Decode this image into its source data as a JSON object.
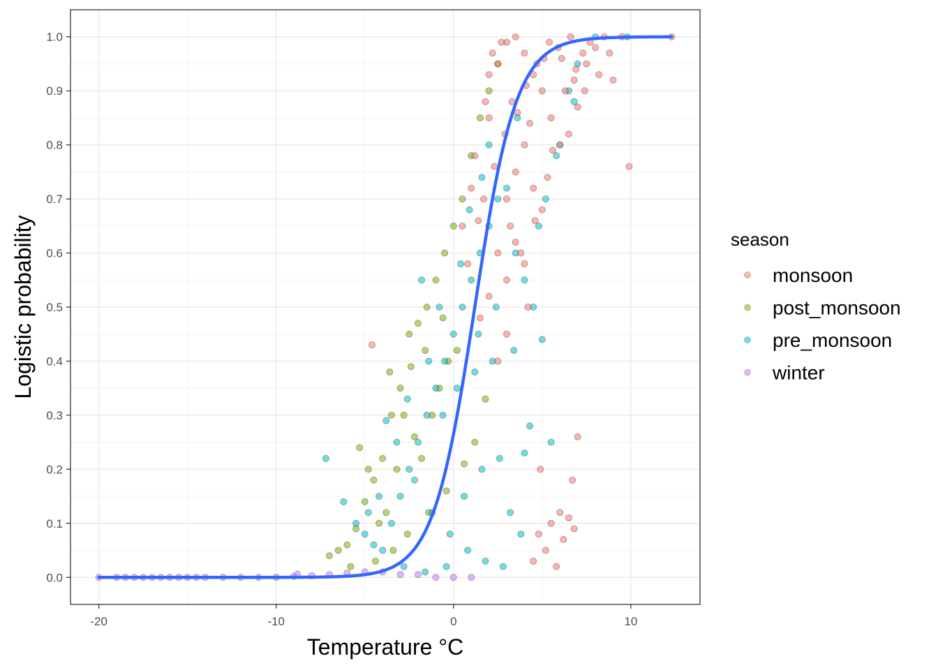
{
  "chart_data": {
    "type": "scatter",
    "title": "",
    "xlabel": "Temperature °C",
    "ylabel": "Logistic probability",
    "xlim": [
      -21.6,
      13.9
    ],
    "ylim": [
      -0.05,
      1.05
    ],
    "x_ticks": [
      -20,
      -10,
      0,
      10
    ],
    "x_tick_labels": [
      "-20",
      "-10",
      "0",
      "10"
    ],
    "y_ticks": [
      0.0,
      0.1,
      0.2,
      0.3,
      0.4,
      0.5,
      0.6,
      0.7,
      0.8,
      0.9,
      1.0
    ],
    "y_tick_labels": [
      "0.0",
      "0.1",
      "0.2",
      "0.3",
      "0.4",
      "0.5",
      "0.6",
      "0.7",
      "0.8",
      "0.9",
      "1.0"
    ],
    "grid": true,
    "legend": {
      "title": "season",
      "placement": "right",
      "entries": [
        {
          "label": "monsoon",
          "color": "#F8766D"
        },
        {
          "label": "post_monsoon",
          "color": "#7CAE00"
        },
        {
          "label": "pre_monsoon",
          "color": "#00BFC4"
        },
        {
          "label": "winter",
          "color": "#C77CFF"
        }
      ]
    },
    "series": [
      {
        "name": "monsoon",
        "color": "#F8766D",
        "points": [
          [
            -4.6,
            0.43
          ],
          [
            0.5,
            0.65
          ],
          [
            1.2,
            0.78
          ],
          [
            2.0,
            0.85
          ],
          [
            2.5,
            0.95
          ],
          [
            3.0,
            0.99
          ],
          [
            3.5,
            1.0
          ],
          [
            4.0,
            0.97
          ],
          [
            4.5,
            0.93
          ],
          [
            5.0,
            0.9
          ],
          [
            5.5,
            0.85
          ],
          [
            6.0,
            0.8
          ],
          [
            6.5,
            0.82
          ],
          [
            7.0,
            0.87
          ],
          [
            7.5,
            0.95
          ],
          [
            8.0,
            0.98
          ],
          [
            9.0,
            0.92
          ],
          [
            9.9,
            0.76
          ],
          [
            12.3,
            1.0
          ],
          [
            3.0,
            0.7
          ],
          [
            3.5,
            0.75
          ],
          [
            4.0,
            0.8
          ],
          [
            4.5,
            0.72
          ],
          [
            5.0,
            0.68
          ],
          [
            2.5,
            0.6
          ],
          [
            3.0,
            0.55
          ],
          [
            3.5,
            0.62
          ],
          [
            4.0,
            0.58
          ],
          [
            1.5,
            0.48
          ],
          [
            2.0,
            0.52
          ],
          [
            2.5,
            0.4
          ],
          [
            3.0,
            0.45
          ],
          [
            4.8,
            0.08
          ],
          [
            5.2,
            0.05
          ],
          [
            5.5,
            0.1
          ],
          [
            5.8,
            0.02
          ],
          [
            6.2,
            0.07
          ],
          [
            6.5,
            0.11
          ],
          [
            6.8,
            0.09
          ],
          [
            4.5,
            0.03
          ],
          [
            7.0,
            0.26
          ],
          [
            6.7,
            0.18
          ],
          [
            4.9,
            0.2
          ],
          [
            6.0,
            0.12
          ],
          [
            2.0,
            0.93
          ],
          [
            1.8,
            0.88
          ],
          [
            2.2,
            0.97
          ],
          [
            3.2,
            0.65
          ],
          [
            3.8,
            0.6
          ],
          [
            4.2,
            0.5
          ],
          [
            4.6,
            0.66
          ],
          [
            5.3,
            0.74
          ],
          [
            5.6,
            0.79
          ],
          [
            6.3,
            0.9
          ],
          [
            6.9,
            0.94
          ],
          [
            7.7,
            0.99
          ],
          [
            8.5,
            1.0
          ],
          [
            2.7,
            0.99
          ],
          [
            3.3,
            0.88
          ],
          [
            4.3,
            0.84
          ],
          [
            5.1,
            0.96
          ],
          [
            5.9,
            0.98
          ],
          [
            6.6,
            1.0
          ],
          [
            7.3,
            0.97
          ],
          [
            1.0,
            0.72
          ],
          [
            1.4,
            0.66
          ],
          [
            0.8,
            0.58
          ],
          [
            1.7,
            0.7
          ],
          [
            2.3,
            0.76
          ],
          [
            2.9,
            0.82
          ],
          [
            3.6,
            0.86
          ],
          [
            4.1,
            0.91
          ],
          [
            4.7,
            0.95
          ],
          [
            5.4,
            0.99
          ],
          [
            6.1,
            0.96
          ],
          [
            6.8,
            0.92
          ],
          [
            7.4,
            0.9
          ],
          [
            8.2,
            0.93
          ],
          [
            8.8,
            0.97
          ],
          [
            9.5,
            1.0
          ]
        ]
      },
      {
        "name": "post_monsoon",
        "color": "#7CAE00",
        "points": [
          [
            -7.0,
            0.04
          ],
          [
            -6.5,
            0.05
          ],
          [
            -6.0,
            0.06
          ],
          [
            -5.5,
            0.09
          ],
          [
            -5.0,
            0.14
          ],
          [
            -4.5,
            0.18
          ],
          [
            -4.0,
            0.22
          ],
          [
            -3.5,
            0.3
          ],
          [
            -3.0,
            0.35
          ],
          [
            -2.5,
            0.45
          ],
          [
            -2.0,
            0.47
          ],
          [
            -1.5,
            0.5
          ],
          [
            -1.0,
            0.55
          ],
          [
            -0.5,
            0.6
          ],
          [
            0.0,
            0.65
          ],
          [
            0.5,
            0.7
          ],
          [
            1.0,
            0.78
          ],
          [
            1.5,
            0.85
          ],
          [
            2.0,
            0.9
          ],
          [
            2.5,
            0.95
          ],
          [
            -5.3,
            0.24
          ],
          [
            -4.8,
            0.2
          ],
          [
            -4.2,
            0.1
          ],
          [
            -3.8,
            0.12
          ],
          [
            -3.2,
            0.2
          ],
          [
            -2.8,
            0.3
          ],
          [
            -2.2,
            0.26
          ],
          [
            -1.8,
            0.22
          ],
          [
            -1.2,
            0.3
          ],
          [
            -0.8,
            0.35
          ],
          [
            -0.3,
            0.4
          ],
          [
            0.2,
            0.42
          ],
          [
            -3.6,
            0.38
          ],
          [
            -2.4,
            0.39
          ],
          [
            -1.6,
            0.42
          ],
          [
            -0.6,
            0.48
          ],
          [
            -5.8,
            0.02
          ],
          [
            -4.4,
            0.03
          ],
          [
            -3.4,
            0.05
          ],
          [
            -2.6,
            0.08
          ],
          [
            -1.4,
            0.12
          ],
          [
            -0.4,
            0.16
          ],
          [
            0.6,
            0.21
          ],
          [
            1.2,
            0.25
          ],
          [
            1.8,
            0.33
          ]
        ]
      },
      {
        "name": "pre_monsoon",
        "color": "#00BFC4",
        "points": [
          [
            -7.2,
            0.22
          ],
          [
            -6.2,
            0.14
          ],
          [
            -5.5,
            0.1
          ],
          [
            -5.0,
            0.08
          ],
          [
            -4.5,
            0.06
          ],
          [
            -4.0,
            0.05
          ],
          [
            -3.5,
            0.1
          ],
          [
            -3.0,
            0.15
          ],
          [
            -2.5,
            0.2
          ],
          [
            -2.0,
            0.25
          ],
          [
            -1.8,
            0.55
          ],
          [
            -1.5,
            0.3
          ],
          [
            -1.0,
            0.35
          ],
          [
            -0.5,
            0.4
          ],
          [
            0.0,
            0.45
          ],
          [
            0.5,
            0.5
          ],
          [
            1.0,
            0.55
          ],
          [
            1.5,
            0.6
          ],
          [
            2.0,
            0.65
          ],
          [
            2.5,
            0.7
          ],
          [
            3.0,
            0.72
          ],
          [
            3.5,
            0.6
          ],
          [
            4.0,
            0.55
          ],
          [
            4.5,
            0.5
          ],
          [
            5.0,
            0.44
          ],
          [
            5.5,
            0.25
          ],
          [
            4.3,
            0.28
          ],
          [
            4.0,
            0.23
          ],
          [
            6.0,
            0.8
          ],
          [
            6.5,
            0.9
          ],
          [
            7.0,
            0.95
          ],
          [
            8.0,
            1.0
          ],
          [
            9.8,
            1.0
          ],
          [
            -3.8,
            0.29
          ],
          [
            -2.2,
            0.18
          ],
          [
            -1.2,
            0.12
          ],
          [
            -0.2,
            0.08
          ],
          [
            0.8,
            0.05
          ],
          [
            1.8,
            0.03
          ],
          [
            2.8,
            0.02
          ],
          [
            -2.8,
            0.02
          ],
          [
            -1.6,
            0.01
          ],
          [
            -0.4,
            0.02
          ],
          [
            0.6,
            0.15
          ],
          [
            1.6,
            0.2
          ],
          [
            2.6,
            0.22
          ],
          [
            3.2,
            0.12
          ],
          [
            3.8,
            0.08
          ],
          [
            -0.8,
            0.5
          ],
          [
            0.4,
            0.58
          ],
          [
            1.4,
            0.45
          ],
          [
            2.4,
            0.5
          ],
          [
            3.4,
            0.42
          ],
          [
            -1.4,
            0.4
          ],
          [
            -0.6,
            0.3
          ],
          [
            0.2,
            0.35
          ],
          [
            1.2,
            0.38
          ],
          [
            2.2,
            0.4
          ],
          [
            4.8,
            0.65
          ],
          [
            5.2,
            0.7
          ],
          [
            5.8,
            0.78
          ],
          [
            6.8,
            0.88
          ],
          [
            3.6,
            0.85
          ],
          [
            2.0,
            0.8
          ],
          [
            1.6,
            0.74
          ],
          [
            0.9,
            0.68
          ],
          [
            -2.6,
            0.33
          ],
          [
            -3.2,
            0.25
          ],
          [
            -4.2,
            0.15
          ],
          [
            -4.8,
            0.12
          ]
        ]
      },
      {
        "name": "winter",
        "color": "#C77CFF",
        "points": [
          [
            -20.0,
            0.0
          ],
          [
            -19.0,
            0.0
          ],
          [
            -18.5,
            0.0
          ],
          [
            -18.0,
            0.0
          ],
          [
            -17.5,
            0.0
          ],
          [
            -17.0,
            0.0
          ],
          [
            -16.5,
            0.0
          ],
          [
            -16.0,
            0.0
          ],
          [
            -15.5,
            0.0
          ],
          [
            -15.0,
            0.0
          ],
          [
            -14.5,
            0.0
          ],
          [
            -14.0,
            0.0
          ],
          [
            -13.0,
            0.0
          ],
          [
            -12.0,
            0.0
          ],
          [
            -11.0,
            0.0
          ],
          [
            -10.0,
            0.0
          ],
          [
            -9.0,
            0.002
          ],
          [
            -8.8,
            0.006
          ],
          [
            -8.0,
            0.003
          ],
          [
            -7.0,
            0.005
          ],
          [
            -6.0,
            0.008
          ],
          [
            -5.0,
            0.01
          ],
          [
            -4.0,
            0.01
          ],
          [
            -3.0,
            0.005
          ],
          [
            -2.0,
            0.005
          ],
          [
            -1.0,
            0.0
          ],
          [
            0.0,
            0.0
          ],
          [
            1.0,
            0.0
          ]
        ]
      }
    ],
    "fit_line": {
      "name": "logistic fit",
      "color": "#3366FF",
      "x0": 1.2,
      "k": 0.85,
      "x_range": [
        -20,
        12.3
      ]
    }
  }
}
